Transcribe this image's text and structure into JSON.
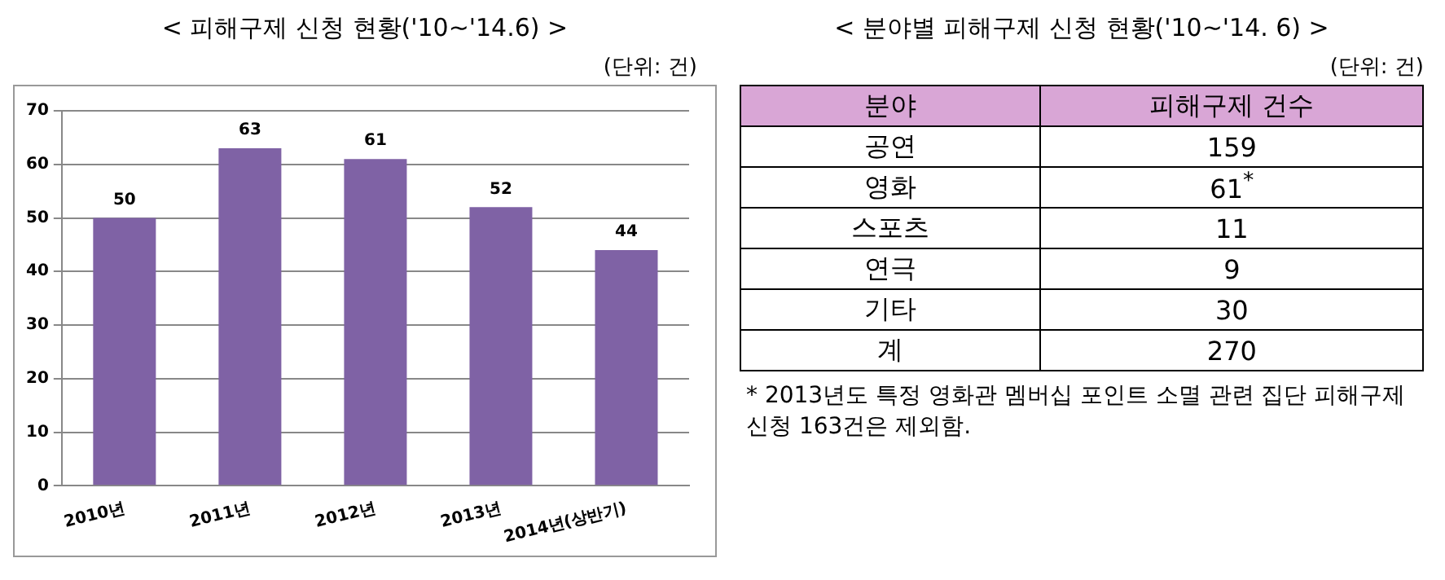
{
  "chart_data": [
    {
      "type": "bar",
      "title": "< 피해구제 신청 현황('10~'14.6) >",
      "annotations": [
        "(단위: 건)"
      ],
      "categories": [
        "2010년",
        "2011년",
        "2012년",
        "2013년",
        "2014년(상반기)"
      ],
      "values": [
        50,
        63,
        61,
        52,
        44
      ],
      "color": "#7f62a5",
      "ylim": [
        0,
        70
      ],
      "yticks": [
        0,
        10,
        20,
        30,
        40,
        50,
        60,
        70
      ],
      "grid": "y",
      "data_labels": true,
      "legend": false
    },
    {
      "type": "other",
      "title": "< 분야별 피해구제 신청 현황('10~'14. 6) >",
      "xlabel": "분야",
      "ylabel": "피해구제 건수",
      "categories": [
        "공연",
        "영화",
        "스포츠",
        "연극",
        "기타",
        "계"
      ],
      "values": [
        159,
        61,
        11,
        9,
        30,
        270
      ],
      "value_labels": [
        "159",
        "61$^{*}$",
        "11",
        "9",
        "30",
        "270"
      ],
      "color": "#d9a6d6",
      "annotations": [
        "(단위: 건)",
        "* 2013년도 특정 영화관 멤버십 포인트 소멸 관련 집단 피해구제 신청 163건은 제외함."
      ]
    }
  ]
}
